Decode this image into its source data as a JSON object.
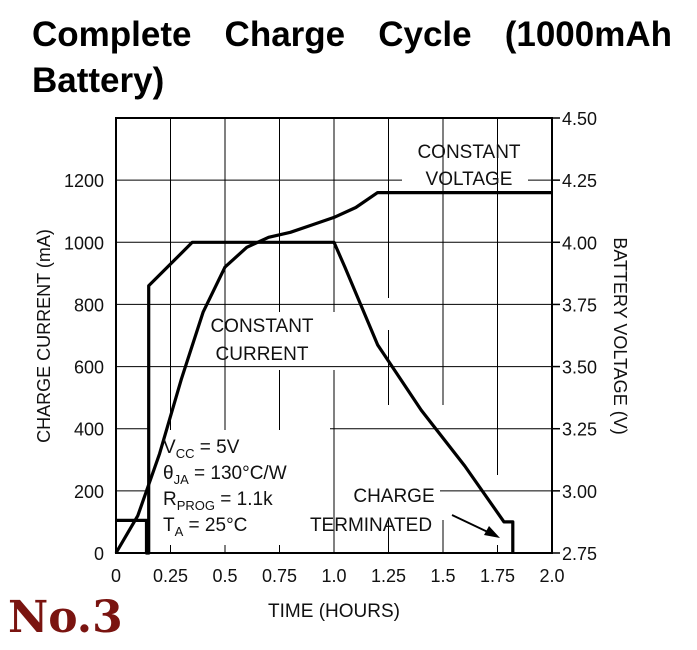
{
  "page": {
    "title": "Complete Charge Cycle (1000mAh Battery)",
    "badge": "No.3"
  },
  "chart_data": {
    "type": "line",
    "xlabel": "TIME (HOURS)",
    "ylabel_left": "CHARGE CURRENT (mA)",
    "ylabel_right": "BATTERY VOLTAGE (V)",
    "xlim": [
      0,
      2.0
    ],
    "ylim_left": [
      0,
      1400
    ],
    "ylim_right": [
      2.75,
      4.5
    ],
    "x_ticks": [
      "0",
      "0.25",
      "0.5",
      "0.75",
      "1.0",
      "1.25",
      "1.5",
      "1.75",
      "2.0"
    ],
    "y_left_ticks": [
      "0",
      "200",
      "400",
      "600",
      "800",
      "1000",
      "1200"
    ],
    "y_right_ticks": [
      "2.75",
      "3.00",
      "3.25",
      "3.50",
      "3.75",
      "4.00",
      "4.25",
      "4.50"
    ],
    "grid": true,
    "series": [
      {
        "axis": "left",
        "x": [
          0,
          0.14,
          0.14,
          0.15,
          0.15,
          0.35,
          1.0,
          1.05,
          1.2,
          1.4,
          1.6,
          1.78,
          1.82,
          1.82
        ],
        "y": [
          105,
          105,
          0,
          0,
          860,
          1000,
          1000,
          920,
          670,
          460,
          280,
          100,
          100,
          0
        ]
      },
      {
        "axis": "right",
        "x": [
          0,
          0.1,
          0.2,
          0.3,
          0.4,
          0.5,
          0.6,
          0.7,
          0.8,
          0.9,
          1.0,
          1.1,
          1.2,
          2.0
        ],
        "y": [
          2.75,
          2.9,
          3.15,
          3.45,
          3.72,
          3.9,
          3.98,
          4.02,
          4.04,
          4.07,
          4.1,
          4.14,
          4.2,
          4.2
        ]
      }
    ],
    "annotations": {
      "cv": [
        "CONSTANT",
        "VOLTAGE"
      ],
      "cc": [
        "CONSTANT",
        "CURRENT"
      ],
      "term": [
        "CHARGE",
        "TERMINATED"
      ],
      "params": [
        {
          "sym": "V",
          "sub": "CC",
          "rest": " = 5V"
        },
        {
          "sym": "θ",
          "sub": "JA",
          "rest": " = 130°C/W"
        },
        {
          "sym": "R",
          "sub": "PROG",
          "rest": " = 1.1k"
        },
        {
          "sym": "T",
          "sub": "A",
          "rest": " = 25°C"
        }
      ]
    },
    "colors": {
      "line": "#000000",
      "grid": "#000000",
      "badge": "#7a1410"
    }
  }
}
